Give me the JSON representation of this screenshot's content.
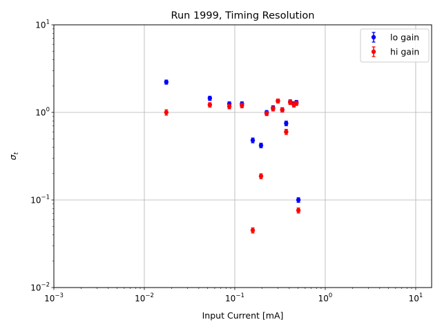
{
  "chart_data": {
    "type": "scatter",
    "title": "Run 1999, Timing Resolution",
    "xlabel": "Input Current [mA]",
    "ylabel": "σt",
    "xscale": "log",
    "yscale": "log",
    "xlim": [
      0.001,
      15
    ],
    "ylim": [
      0.01,
      10
    ],
    "grid": true,
    "legend_position": "top-right",
    "x_ticks": [
      {
        "value": 0.001,
        "base": "10",
        "exp": "−3"
      },
      {
        "value": 0.01,
        "base": "10",
        "exp": "−2"
      },
      {
        "value": 0.1,
        "base": "10",
        "exp": "−1"
      },
      {
        "value": 1,
        "base": "10",
        "exp": "0"
      },
      {
        "value": 10,
        "base": "10",
        "exp": "1"
      }
    ],
    "y_ticks": [
      {
        "value": 0.01,
        "base": "10",
        "exp": "−2"
      },
      {
        "value": 0.1,
        "base": "10",
        "exp": "−1"
      },
      {
        "value": 1,
        "base": "10",
        "exp": "0"
      },
      {
        "value": 10,
        "base": "10",
        "exp": "1"
      }
    ],
    "series": [
      {
        "name": "lo gain",
        "color": "#0000ff",
        "x": [
          0.0175,
          0.053,
          0.087,
          0.12,
          0.158,
          0.195,
          0.225,
          0.265,
          0.3,
          0.335,
          0.37,
          0.41,
          0.45,
          0.48,
          0.505
        ],
        "y": [
          2.22,
          1.45,
          1.25,
          1.25,
          0.48,
          0.42,
          1.0,
          1.13,
          1.35,
          1.07,
          0.75,
          1.32,
          1.25,
          1.3,
          0.1
        ],
        "yerr": [
          0.12,
          0.08,
          0.07,
          0.07,
          0.03,
          0.025,
          0.05,
          0.06,
          0.07,
          0.06,
          0.045,
          0.07,
          0.07,
          0.07,
          0.006
        ]
      },
      {
        "name": "hi gain",
        "color": "#ff0000",
        "x": [
          0.0175,
          0.053,
          0.087,
          0.12,
          0.158,
          0.195,
          0.225,
          0.265,
          0.3,
          0.335,
          0.37,
          0.41,
          0.45,
          0.48,
          0.505
        ],
        "y": [
          1.0,
          1.22,
          1.17,
          1.2,
          0.045,
          0.187,
          0.97,
          1.1,
          1.35,
          1.07,
          0.6,
          1.3,
          1.22,
          1.27,
          0.076
        ],
        "yerr": [
          0.07,
          0.07,
          0.07,
          0.07,
          0.003,
          0.012,
          0.05,
          0.06,
          0.07,
          0.06,
          0.04,
          0.07,
          0.07,
          0.07,
          0.005
        ]
      }
    ]
  }
}
